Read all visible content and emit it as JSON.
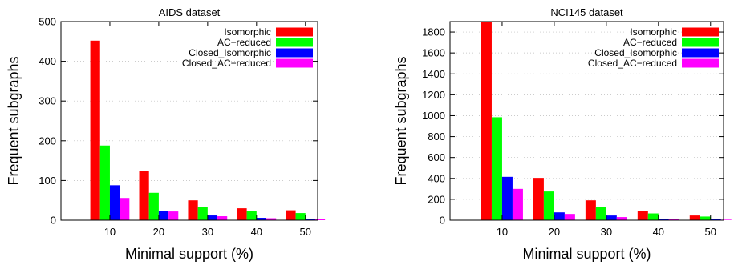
{
  "chart_data": [
    {
      "type": "bar",
      "title": "AIDS dataset",
      "xlabel": "Minimal support (%)",
      "ylabel": "Frequent subgraphs",
      "categories": [
        "10",
        "20",
        "30",
        "40",
        "50"
      ],
      "ylim": [
        0,
        500
      ],
      "yticks": [
        0,
        100,
        200,
        300,
        400,
        500
      ],
      "grid": true,
      "legend_position": "top-right",
      "series": [
        {
          "name": "Isomorphic",
          "color": "#ff0000",
          "values": [
            452,
            125,
            50,
            30,
            25
          ]
        },
        {
          "name": "AC−reduced",
          "color": "#00ff00",
          "values": [
            188,
            69,
            34,
            24,
            18
          ]
        },
        {
          "name": "Closed_Isomorphic",
          "color": "#0000ff",
          "values": [
            88,
            24,
            12,
            6,
            4
          ]
        },
        {
          "name": "Closed_AC−reduced",
          "color": "#ff00ff",
          "values": [
            56,
            22,
            10,
            5,
            3
          ]
        }
      ]
    },
    {
      "type": "bar",
      "title": "NCI145 dataset",
      "xlabel": "Minimal support (%)",
      "ylabel": "Frequent subgraphs",
      "categories": [
        "10",
        "20",
        "30",
        "40",
        "50"
      ],
      "ylim": [
        0,
        1900
      ],
      "yticks": [
        0,
        200,
        400,
        600,
        800,
        1000,
        1200,
        1400,
        1600,
        1800
      ],
      "grid": true,
      "legend_position": "top-right",
      "series": [
        {
          "name": "Isomorphic",
          "color": "#ff0000",
          "values": [
            1900,
            405,
            190,
            90,
            45
          ]
        },
        {
          "name": "AC−reduced",
          "color": "#00ff00",
          "values": [
            985,
            275,
            130,
            65,
            35
          ]
        },
        {
          "name": "Closed_Isomorphic",
          "color": "#0000ff",
          "values": [
            415,
            75,
            45,
            15,
            10
          ]
        },
        {
          "name": "Closed_AC−reduced",
          "color": "#ff00ff",
          "values": [
            300,
            60,
            30,
            12,
            5
          ]
        }
      ]
    }
  ]
}
